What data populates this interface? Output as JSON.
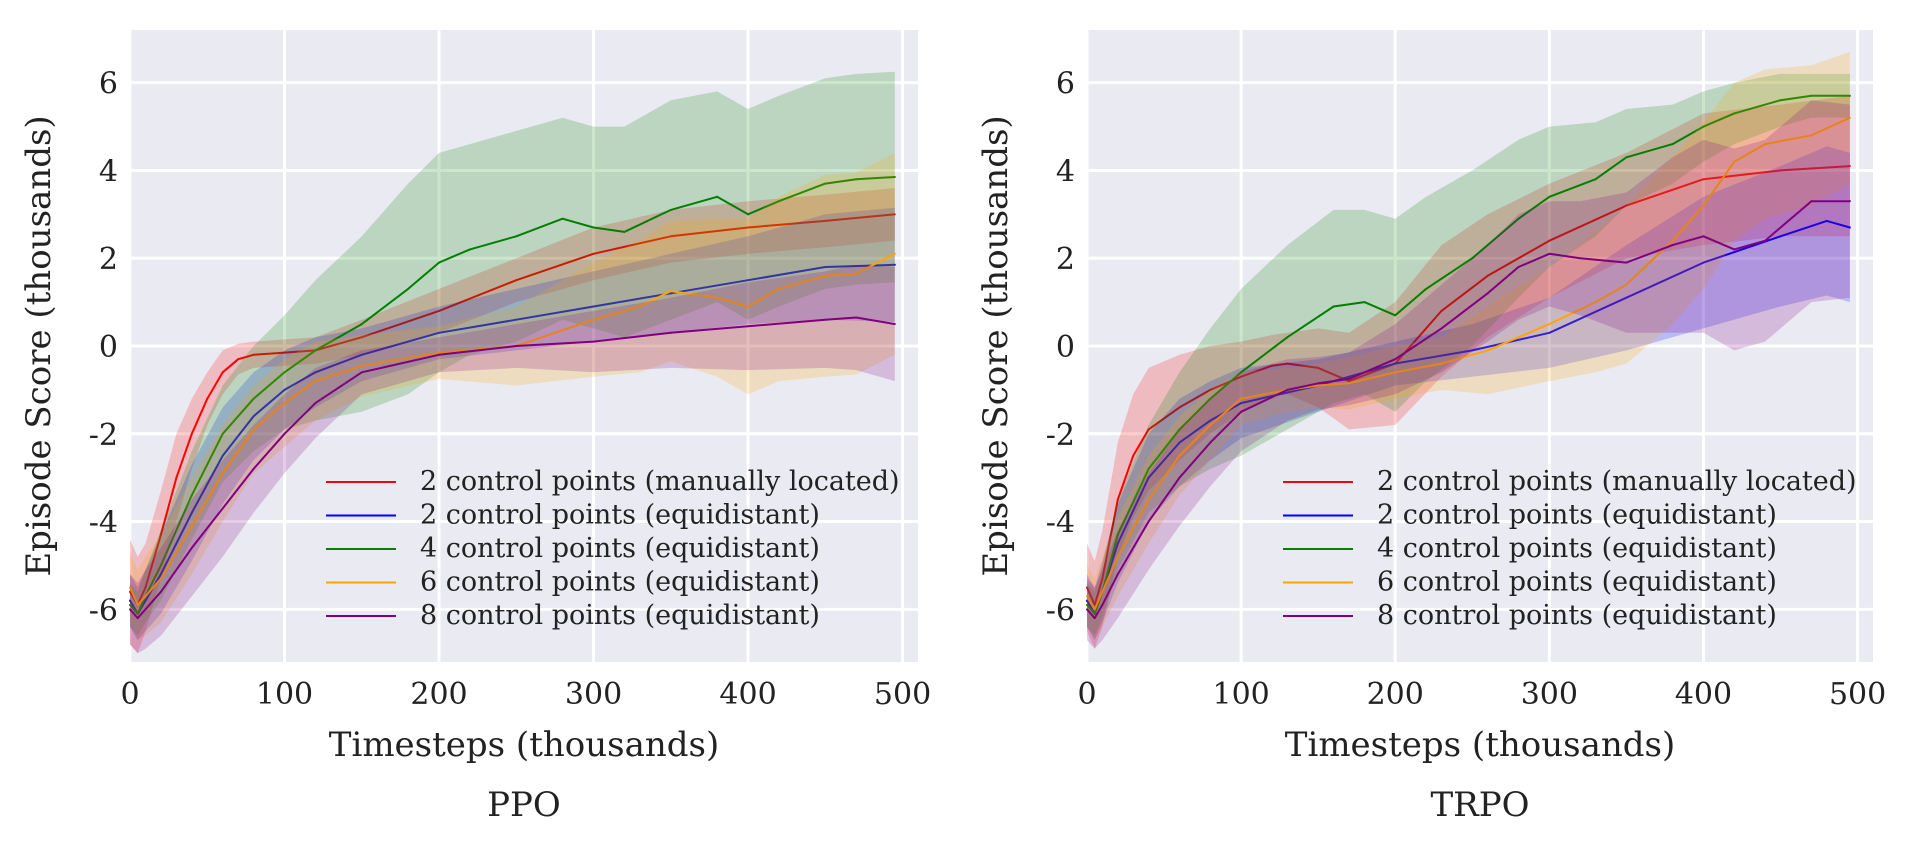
{
  "chart_data": [
    {
      "type": "line",
      "caption": "PPO",
      "xlabel": "Timesteps (thousands)",
      "ylabel": "Episode Score (thousands)",
      "xlim": [
        0,
        510
      ],
      "ylim": [
        -7.2,
        7.2
      ],
      "xticks": [
        0,
        100,
        200,
        300,
        400,
        500
      ],
      "xtick_labels": [
        "0",
        "100",
        "200",
        "300",
        "400",
        "500"
      ],
      "yticks": [
        -6,
        -4,
        -2,
        0,
        2,
        4,
        6
      ],
      "ytick_labels": [
        "-6",
        "-4",
        "-2",
        "0",
        "2",
        "4",
        "6"
      ],
      "grid": true,
      "legend_position": "bottom-right",
      "series": [
        {
          "name": "2 control points (manually located)",
          "color": "#ff0000",
          "x": [
            0,
            5,
            10,
            20,
            30,
            40,
            50,
            60,
            70,
            80,
            100,
            120,
            150,
            200,
            250,
            300,
            350,
            400,
            450,
            495
          ],
          "y": [
            -5.6,
            -5.9,
            -5.5,
            -4.3,
            -3.0,
            -2.0,
            -1.2,
            -0.6,
            -0.3,
            -0.2,
            -0.15,
            -0.1,
            0.2,
            0.8,
            1.5,
            2.1,
            2.5,
            2.7,
            2.85,
            3.0
          ],
          "band": [
            1.2,
            1.1,
            1.0,
            1.0,
            1.0,
            0.8,
            0.6,
            0.5,
            0.35,
            0.3,
            0.3,
            0.3,
            0.4,
            0.5,
            0.5,
            0.6,
            0.6,
            0.6,
            0.6,
            0.6
          ]
        },
        {
          "name": "2 control points (equidistant)",
          "color": "#0000ff",
          "x": [
            0,
            5,
            10,
            20,
            40,
            60,
            80,
            100,
            120,
            150,
            200,
            250,
            300,
            350,
            400,
            450,
            495
          ],
          "y": [
            -5.8,
            -6.1,
            -5.8,
            -5.2,
            -3.8,
            -2.5,
            -1.6,
            -1.0,
            -0.6,
            -0.2,
            0.3,
            0.6,
            0.9,
            1.2,
            1.5,
            1.8,
            1.85
          ],
          "band": [
            0.6,
            0.6,
            0.7,
            0.9,
            1.1,
            1.1,
            1.0,
            0.9,
            0.8,
            0.6,
            0.6,
            0.7,
            0.8,
            0.9,
            1.0,
            1.2,
            1.3
          ]
        },
        {
          "name": "4 control points (equidistant)",
          "color": "#008000",
          "x": [
            0,
            5,
            10,
            20,
            40,
            60,
            80,
            100,
            120,
            150,
            180,
            200,
            220,
            250,
            280,
            300,
            320,
            350,
            380,
            400,
            420,
            450,
            470,
            495
          ],
          "y": [
            -5.9,
            -6.1,
            -5.7,
            -5.0,
            -3.4,
            -2.0,
            -1.2,
            -0.6,
            -0.1,
            0.5,
            1.3,
            1.9,
            2.2,
            2.5,
            2.9,
            2.7,
            2.6,
            3.1,
            3.4,
            3.0,
            3.3,
            3.7,
            3.8,
            3.85
          ],
          "band": [
            0.5,
            0.5,
            0.6,
            0.8,
            1.0,
            1.1,
            1.2,
            1.3,
            1.6,
            2.0,
            2.4,
            2.5,
            2.4,
            2.4,
            2.3,
            2.3,
            2.4,
            2.5,
            2.4,
            2.4,
            2.4,
            2.4,
            2.4,
            2.4
          ]
        },
        {
          "name": "6 control points (equidistant)",
          "color": "#ffa500",
          "x": [
            0,
            5,
            10,
            20,
            40,
            60,
            80,
            100,
            120,
            150,
            200,
            250,
            300,
            330,
            350,
            380,
            400,
            420,
            450,
            470,
            495
          ],
          "y": [
            -5.5,
            -5.9,
            -5.7,
            -5.3,
            -4.1,
            -2.9,
            -1.9,
            -1.3,
            -0.8,
            -0.45,
            -0.15,
            0.0,
            0.6,
            0.9,
            1.25,
            1.1,
            0.9,
            1.3,
            1.6,
            1.65,
            2.1
          ],
          "band": [
            0.8,
            0.8,
            0.9,
            1.0,
            1.1,
            1.1,
            1.0,
            1.0,
            0.9,
            0.7,
            0.6,
            0.9,
            1.3,
            1.5,
            1.6,
            1.8,
            2.0,
            2.1,
            2.3,
            2.3,
            2.3
          ]
        },
        {
          "name": "8 control points (equidistant)",
          "color": "#800080",
          "x": [
            0,
            5,
            10,
            20,
            40,
            60,
            80,
            100,
            120,
            150,
            200,
            250,
            300,
            350,
            400,
            450,
            470,
            495
          ],
          "y": [
            -6.0,
            -6.2,
            -6.0,
            -5.6,
            -4.6,
            -3.7,
            -2.8,
            -2.0,
            -1.3,
            -0.6,
            -0.2,
            0.0,
            0.1,
            0.3,
            0.45,
            0.6,
            0.65,
            0.5
          ],
          "band": [
            0.8,
            0.8,
            0.9,
            1.0,
            1.1,
            1.1,
            1.0,
            0.9,
            0.8,
            0.5,
            0.4,
            0.5,
            0.7,
            0.8,
            1.0,
            1.1,
            1.2,
            1.3
          ]
        }
      ]
    },
    {
      "type": "line",
      "caption": "TRPO",
      "xlabel": "Timesteps (thousands)",
      "ylabel": "Episode Score (thousands)",
      "xlim": [
        0,
        510
      ],
      "ylim": [
        -7.2,
        7.2
      ],
      "xticks": [
        0,
        100,
        200,
        300,
        400,
        500
      ],
      "xtick_labels": [
        "0",
        "100",
        "200",
        "300",
        "400",
        "500"
      ],
      "yticks": [
        -6,
        -4,
        -2,
        0,
        2,
        4,
        6
      ],
      "ytick_labels": [
        "-6",
        "-4",
        "-2",
        "0",
        "2",
        "4",
        "6"
      ],
      "grid": true,
      "legend_position": "bottom-right",
      "series": [
        {
          "name": "2 control points (manually located)",
          "color": "#ff0000",
          "x": [
            0,
            5,
            10,
            20,
            30,
            40,
            60,
            80,
            100,
            120,
            130,
            150,
            170,
            200,
            230,
            260,
            300,
            350,
            400,
            450,
            495
          ],
          "y": [
            -5.5,
            -5.9,
            -5.3,
            -3.5,
            -2.5,
            -1.9,
            -1.4,
            -1.0,
            -0.7,
            -0.45,
            -0.4,
            -0.5,
            -0.8,
            -0.4,
            0.8,
            1.6,
            2.4,
            3.2,
            3.8,
            4.0,
            4.1
          ],
          "band": [
            1.0,
            1.0,
            1.1,
            1.3,
            1.4,
            1.4,
            1.2,
            1.0,
            0.8,
            0.7,
            0.7,
            0.9,
            1.1,
            1.4,
            1.5,
            1.4,
            1.3,
            1.2,
            1.5,
            1.5,
            1.6
          ]
        },
        {
          "name": "2 control points (equidistant)",
          "color": "#0000ff",
          "x": [
            0,
            5,
            10,
            20,
            40,
            60,
            80,
            100,
            150,
            200,
            250,
            300,
            350,
            400,
            450,
            480,
            495
          ],
          "y": [
            -5.8,
            -6.1,
            -5.6,
            -4.5,
            -3.0,
            -2.2,
            -1.7,
            -1.3,
            -0.9,
            -0.4,
            -0.1,
            0.3,
            1.1,
            1.9,
            2.5,
            2.85,
            2.7
          ],
          "band": [
            0.6,
            0.6,
            0.7,
            0.9,
            1.0,
            1.0,
            0.9,
            0.8,
            0.6,
            0.5,
            0.6,
            0.8,
            1.2,
            1.5,
            1.6,
            1.7,
            1.7
          ]
        },
        {
          "name": "4 control points (equidistant)",
          "color": "#008000",
          "x": [
            0,
            5,
            10,
            20,
            40,
            60,
            80,
            100,
            130,
            160,
            180,
            200,
            220,
            250,
            280,
            300,
            330,
            350,
            380,
            400,
            420,
            450,
            470,
            495
          ],
          "y": [
            -5.9,
            -6.1,
            -5.6,
            -4.3,
            -2.8,
            -1.9,
            -1.2,
            -0.6,
            0.2,
            0.9,
            1.0,
            0.7,
            1.3,
            2.0,
            2.9,
            3.4,
            3.8,
            4.3,
            4.6,
            5.0,
            5.3,
            5.6,
            5.7,
            5.7
          ],
          "band": [
            0.5,
            0.5,
            0.6,
            0.8,
            1.0,
            1.3,
            1.6,
            1.9,
            2.1,
            2.2,
            2.1,
            2.2,
            2.1,
            2.0,
            1.8,
            1.6,
            1.3,
            1.1,
            0.9,
            0.8,
            0.7,
            0.6,
            0.5,
            0.5
          ]
        },
        {
          "name": "6 control points (equidistant)",
          "color": "#ffa500",
          "x": [
            0,
            5,
            10,
            20,
            40,
            60,
            80,
            100,
            130,
            150,
            170,
            200,
            230,
            260,
            300,
            330,
            350,
            380,
            400,
            420,
            440,
            470,
            495
          ],
          "y": [
            -5.7,
            -6.0,
            -5.6,
            -4.8,
            -3.5,
            -2.5,
            -1.8,
            -1.2,
            -1.0,
            -0.9,
            -0.85,
            -0.6,
            -0.4,
            -0.1,
            0.5,
            1.0,
            1.4,
            2.4,
            3.2,
            4.2,
            4.6,
            4.8,
            5.2
          ],
          "band": [
            0.7,
            0.7,
            0.8,
            0.9,
            1.0,
            0.9,
            0.8,
            0.6,
            0.5,
            0.5,
            0.6,
            0.6,
            0.6,
            1.0,
            1.3,
            1.6,
            1.8,
            1.9,
            1.9,
            1.8,
            1.7,
            1.6,
            1.5
          ]
        },
        {
          "name": "8 control points (equidistant)",
          "color": "#800080",
          "x": [
            0,
            5,
            10,
            20,
            40,
            60,
            80,
            100,
            130,
            150,
            170,
            200,
            230,
            260,
            280,
            300,
            320,
            350,
            380,
            400,
            420,
            440,
            470,
            495
          ],
          "y": [
            -6.0,
            -6.2,
            -5.9,
            -5.2,
            -4.0,
            -3.0,
            -2.2,
            -1.5,
            -1.0,
            -0.85,
            -0.75,
            -0.3,
            0.4,
            1.2,
            1.8,
            2.1,
            2.0,
            1.9,
            2.3,
            2.5,
            2.2,
            2.4,
            3.3,
            3.3
          ],
          "band": [
            0.7,
            0.7,
            0.8,
            1.0,
            1.1,
            1.1,
            1.0,
            0.9,
            0.7,
            0.6,
            0.6,
            0.8,
            1.0,
            1.1,
            1.2,
            1.2,
            1.3,
            1.6,
            2.0,
            2.2,
            2.3,
            2.3,
            2.3,
            2.2
          ]
        }
      ]
    }
  ]
}
